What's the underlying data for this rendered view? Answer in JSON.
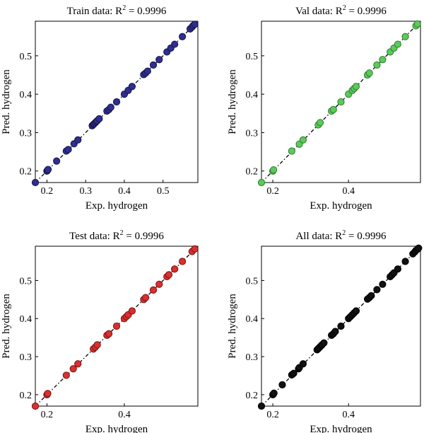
{
  "chart_data": [
    {
      "type": "scatter",
      "title": "Train data: R2 = 0.9996",
      "title_parts": {
        "prefix": "Train data: R",
        "sup": "2",
        "suffix": " = 0.9996"
      },
      "xlabel": "Exp. hydrogen",
      "ylabel": "Pred. hydrogen",
      "xlim": [
        0.17,
        0.59
      ],
      "ylim": [
        0.17,
        0.59
      ],
      "xticks": [
        0.2,
        0.3,
        0.4,
        0.5
      ],
      "yticks": [
        0.2,
        0.3,
        0.4,
        0.5
      ],
      "xtick_labels": [
        "0.2",
        "0.3",
        "0.4",
        "0.5"
      ],
      "ytick_labels": [
        "0.2",
        "0.3",
        "0.4",
        "0.5"
      ],
      "marker_color": "#2f2f8f",
      "marker_edge": "#15154a",
      "fit_line": "y = x (dash-dot)",
      "grid": false,
      "x": [
        0.17,
        0.2,
        0.201,
        0.203,
        0.225,
        0.25,
        0.255,
        0.27,
        0.28,
        0.317,
        0.32,
        0.322,
        0.325,
        0.328,
        0.33,
        0.335,
        0.355,
        0.36,
        0.365,
        0.38,
        0.4,
        0.41,
        0.42,
        0.45,
        0.455,
        0.46,
        0.475,
        0.49,
        0.51,
        0.52,
        0.53,
        0.55,
        0.57,
        0.575,
        0.578,
        0.582
      ],
      "y": [
        0.17,
        0.2,
        0.201,
        0.204,
        0.226,
        0.252,
        0.256,
        0.271,
        0.281,
        0.318,
        0.321,
        0.323,
        0.326,
        0.329,
        0.331,
        0.336,
        0.356,
        0.36,
        0.366,
        0.38,
        0.4,
        0.41,
        0.42,
        0.451,
        0.455,
        0.46,
        0.476,
        0.49,
        0.51,
        0.52,
        0.53,
        0.55,
        0.57,
        0.575,
        0.579,
        0.582
      ]
    },
    {
      "type": "scatter",
      "title": "Val data: R2 = 0.9996",
      "title_parts": {
        "prefix": "Val data: R",
        "sup": "2",
        "suffix": " = 0.9996"
      },
      "xlabel": "Exp. hydrogen",
      "ylabel": "Pred. hydrogen",
      "xlim": [
        0.17,
        0.59
      ],
      "ylim": [
        0.17,
        0.59
      ],
      "xticks": [
        0.2,
        0.4
      ],
      "yticks": [
        0.2,
        0.3,
        0.4,
        0.5
      ],
      "xtick_labels": [
        "0.2",
        "0.4"
      ],
      "ytick_labels": [
        "0.2",
        "0.3",
        "0.4",
        "0.5"
      ],
      "marker_color": "#5cc95c",
      "marker_edge": "#2e7d2e",
      "fit_line": "y = x (dash-dot)",
      "grid": false,
      "x": [
        0.17,
        0.2,
        0.202,
        0.25,
        0.27,
        0.28,
        0.32,
        0.325,
        0.355,
        0.36,
        0.38,
        0.4,
        0.41,
        0.415,
        0.42,
        0.45,
        0.455,
        0.475,
        0.49,
        0.51,
        0.52,
        0.53,
        0.55,
        0.578,
        0.582
      ],
      "y": [
        0.17,
        0.2,
        0.203,
        0.252,
        0.27,
        0.281,
        0.32,
        0.326,
        0.356,
        0.36,
        0.38,
        0.4,
        0.41,
        0.415,
        0.42,
        0.45,
        0.455,
        0.476,
        0.49,
        0.51,
        0.52,
        0.53,
        0.55,
        0.578,
        0.583
      ]
    },
    {
      "type": "scatter",
      "title": "Test data: R2 = 0.9996",
      "title_parts": {
        "prefix": "Test data: R",
        "sup": "2",
        "suffix": " = 0.9996"
      },
      "xlabel": "Exp. hydrogen",
      "ylabel": "Pred. hydrogen",
      "xlim": [
        0.17,
        0.59
      ],
      "ylim": [
        0.17,
        0.59
      ],
      "xticks": [
        0.2,
        0.4
      ],
      "yticks": [
        0.2,
        0.3,
        0.4,
        0.5
      ],
      "xtick_labels": [
        "0.2",
        "0.4"
      ],
      "ytick_labels": [
        "0.2",
        "0.3",
        "0.4",
        "0.5"
      ],
      "marker_color": "#d93030",
      "marker_edge": "#7a1010",
      "fit_line": "y = x (dash-dot)",
      "grid": false,
      "x": [
        0.17,
        0.2,
        0.202,
        0.25,
        0.268,
        0.28,
        0.32,
        0.325,
        0.33,
        0.355,
        0.36,
        0.38,
        0.4,
        0.405,
        0.41,
        0.42,
        0.45,
        0.455,
        0.475,
        0.49,
        0.51,
        0.515,
        0.53,
        0.55,
        0.575,
        0.582
      ],
      "y": [
        0.17,
        0.2,
        0.203,
        0.251,
        0.268,
        0.281,
        0.32,
        0.325,
        0.331,
        0.356,
        0.36,
        0.38,
        0.4,
        0.405,
        0.41,
        0.42,
        0.45,
        0.455,
        0.475,
        0.49,
        0.51,
        0.515,
        0.53,
        0.55,
        0.576,
        0.583
      ]
    },
    {
      "type": "scatter",
      "title": "All data: R2 = 0.9996",
      "title_parts": {
        "prefix": "All data: R",
        "sup": "2",
        "suffix": " = 0.9996"
      },
      "xlabel": "Exp. hydrogen",
      "ylabel": "Pred. hydrogen",
      "xlim": [
        0.17,
        0.59
      ],
      "ylim": [
        0.17,
        0.59
      ],
      "xticks": [
        0.2,
        0.4
      ],
      "yticks": [
        0.2,
        0.3,
        0.4,
        0.5
      ],
      "xtick_labels": [
        "0.2",
        "0.4"
      ],
      "ytick_labels": [
        "0.2",
        "0.3",
        "0.4",
        "0.5"
      ],
      "marker_color": "#111111",
      "marker_edge": "#000000",
      "fit_line": "y = x (dash-dot)",
      "grid": false,
      "x": [
        0.17,
        0.2,
        0.201,
        0.203,
        0.225,
        0.25,
        0.255,
        0.268,
        0.27,
        0.28,
        0.317,
        0.32,
        0.322,
        0.325,
        0.328,
        0.33,
        0.335,
        0.355,
        0.36,
        0.365,
        0.38,
        0.4,
        0.405,
        0.41,
        0.415,
        0.42,
        0.45,
        0.455,
        0.46,
        0.475,
        0.49,
        0.51,
        0.515,
        0.52,
        0.53,
        0.55,
        0.57,
        0.575,
        0.578,
        0.582,
        0.585
      ],
      "y": [
        0.17,
        0.2,
        0.201,
        0.204,
        0.226,
        0.252,
        0.256,
        0.268,
        0.271,
        0.281,
        0.318,
        0.321,
        0.323,
        0.326,
        0.329,
        0.331,
        0.336,
        0.356,
        0.36,
        0.366,
        0.38,
        0.4,
        0.405,
        0.41,
        0.415,
        0.42,
        0.451,
        0.455,
        0.46,
        0.476,
        0.49,
        0.51,
        0.515,
        0.52,
        0.53,
        0.55,
        0.57,
        0.575,
        0.579,
        0.582,
        0.585
      ]
    }
  ]
}
